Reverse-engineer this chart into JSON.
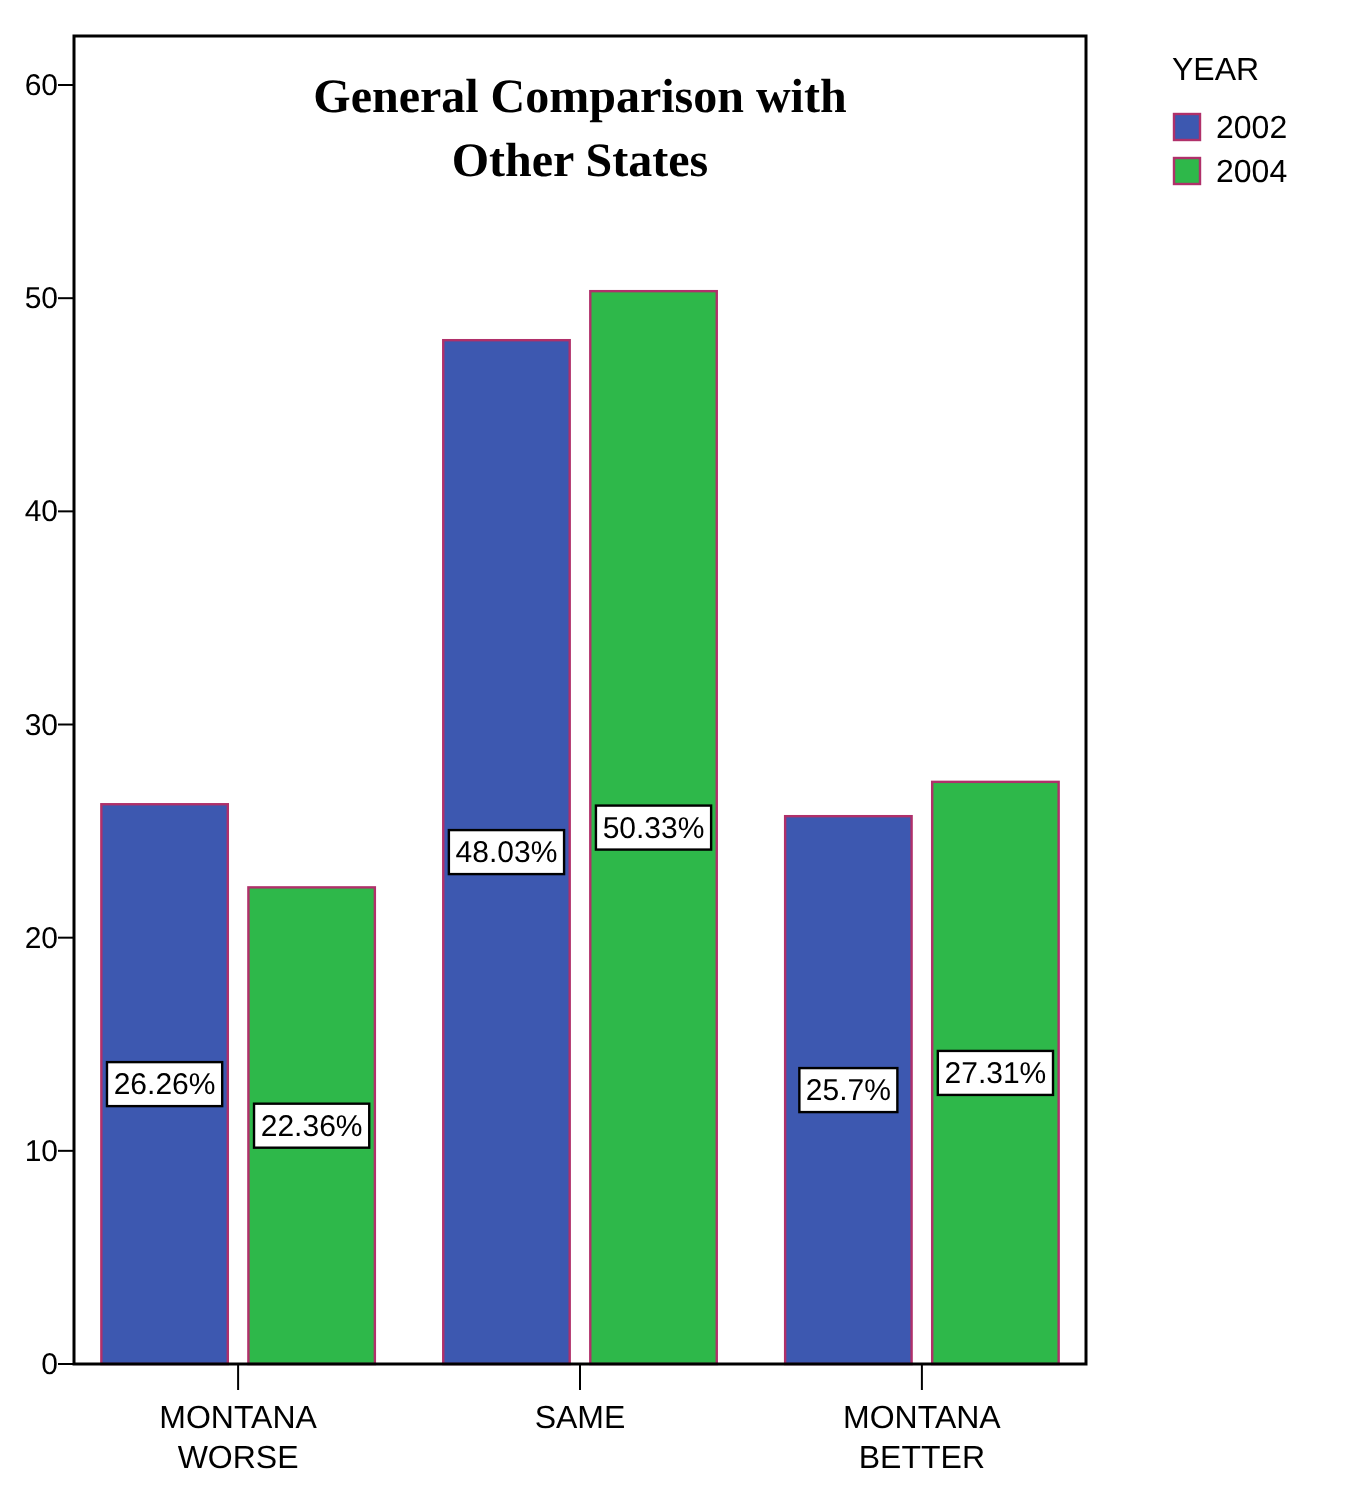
{
  "chart_data": {
    "type": "bar",
    "title": "General Comparison with Other States",
    "categories": [
      "MONTANA WORSE",
      "SAME",
      "MONTANA BETTER"
    ],
    "series": [
      {
        "name": "2002",
        "color": "#3d58b0",
        "values": [
          26.26,
          48.03,
          25.7
        ],
        "value_labels": [
          "26.26%",
          "48.03%",
          "25.7%"
        ]
      },
      {
        "name": "2004",
        "color": "#2eb84a",
        "values": [
          22.36,
          50.33,
          27.31
        ],
        "value_labels": [
          "22.36%",
          "50.33%",
          "27.31%"
        ]
      }
    ],
    "ylim": [
      0,
      62.3
    ],
    "yticks": [
      0,
      10,
      20,
      30,
      40,
      50,
      60
    ],
    "grid": false,
    "legend": "top right",
    "legend_title": "YEAR"
  }
}
